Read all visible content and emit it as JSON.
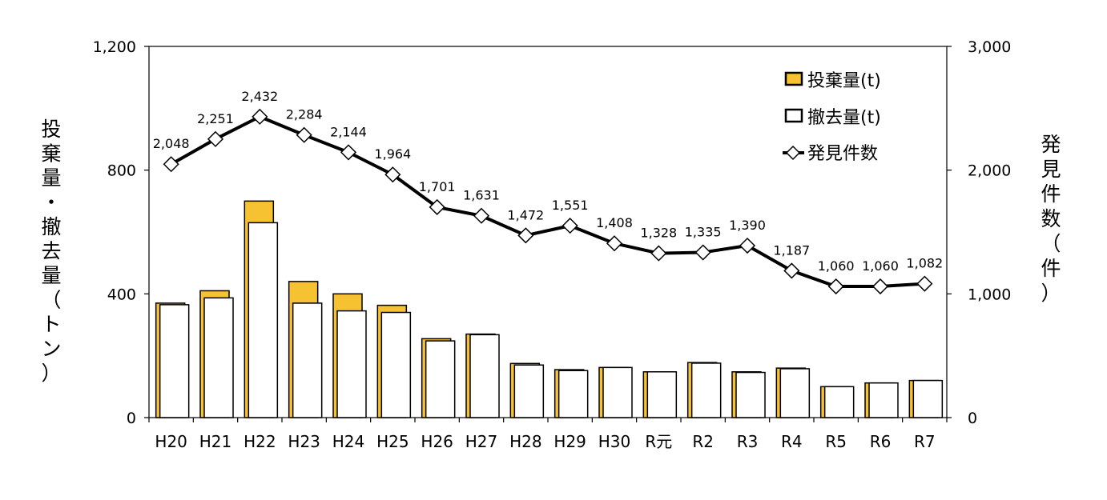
{
  "chart_data": {
    "type": "bar",
    "categories": [
      "H20",
      "H21",
      "H22",
      "H23",
      "H24",
      "H25",
      "H26",
      "H27",
      "H28",
      "H29",
      "H30",
      "R元",
      "R2",
      "R3",
      "R4",
      "R5",
      "R6",
      "R7"
    ],
    "series": [
      {
        "name": "投棄量(t)",
        "type": "bar",
        "axis": "left",
        "color": "#F7C232",
        "values": [
          370,
          410,
          700,
          440,
          400,
          363,
          255,
          270,
          175,
          155,
          162,
          148,
          178,
          148,
          160,
          100,
          112,
          120
        ]
      },
      {
        "name": "撤去量(t)",
        "type": "bar",
        "axis": "left",
        "color": "#FFFFFF",
        "values": [
          365,
          387,
          630,
          370,
          345,
          340,
          248,
          268,
          170,
          152,
          162,
          148,
          176,
          146,
          158,
          100,
          112,
          120
        ]
      },
      {
        "name": "発見件数",
        "type": "line",
        "axis": "right",
        "color": "#000000",
        "values": [
          2048,
          2251,
          2432,
          2284,
          2144,
          1964,
          1701,
          1631,
          1472,
          1551,
          1408,
          1328,
          1335,
          1390,
          1187,
          1060,
          1060,
          1082
        ],
        "labels": [
          "2,048",
          "2,251",
          "2,432",
          "2,284",
          "2,144",
          "1,964",
          "1,701",
          "1,631",
          "1,472",
          "1,551",
          "1,408",
          "1,328",
          "1,335",
          "1,390",
          "1,187",
          "1,060",
          "1,060",
          "1,082"
        ]
      }
    ],
    "y_left": {
      "label": "投棄量・撤去量（トン）",
      "ylim": [
        0,
        1200
      ],
      "ticks": [
        0,
        400,
        800,
        1200
      ],
      "tick_labels": [
        "0",
        "400",
        "800",
        "1,200"
      ]
    },
    "y_right": {
      "label": "発見件数（件）",
      "ylim": [
        0,
        3000
      ],
      "ticks": [
        0,
        1000,
        2000,
        3000
      ],
      "tick_labels": [
        "0",
        "1,000",
        "2,000",
        "3,000"
      ]
    },
    "legend": "top-right",
    "grid": false
  }
}
